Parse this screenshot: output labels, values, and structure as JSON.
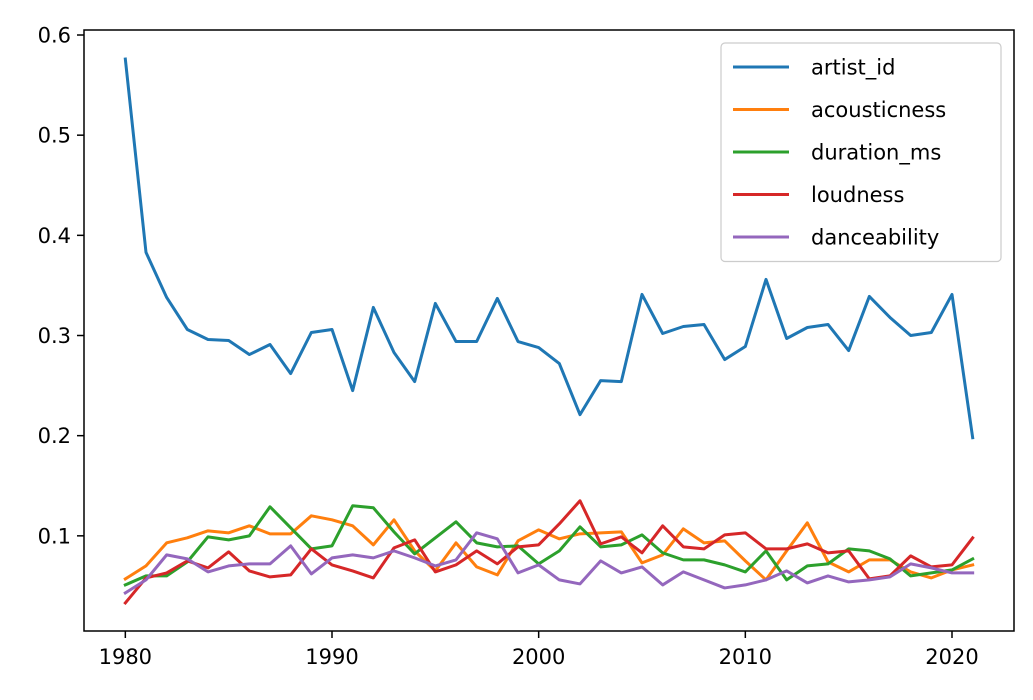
{
  "chart_data": {
    "type": "line",
    "title": "",
    "xlabel": "",
    "ylabel": "",
    "xlim": [
      1978,
      2023
    ],
    "ylim": [
      0.005,
      0.605
    ],
    "xticks": [
      1980,
      1990,
      2000,
      2010,
      2020
    ],
    "yticks": [
      0.1,
      0.2,
      0.3,
      0.4,
      0.5,
      0.6
    ],
    "xtick_labels": [
      "1980",
      "1990",
      "2000",
      "2010",
      "2020"
    ],
    "ytick_labels": [
      "0.1",
      "0.2",
      "0.3",
      "0.4",
      "0.5",
      "0.6"
    ],
    "grid": false,
    "legend_position": "top-right",
    "x": [
      1980,
      1981,
      1982,
      1983,
      1984,
      1985,
      1986,
      1987,
      1988,
      1989,
      1990,
      1991,
      1992,
      1993,
      1994,
      1995,
      1996,
      1997,
      1998,
      1999,
      2000,
      2001,
      2002,
      2003,
      2004,
      2005,
      2006,
      2007,
      2008,
      2009,
      2010,
      2011,
      2012,
      2013,
      2014,
      2015,
      2016,
      2017,
      2018,
      2019,
      2020,
      2021
    ],
    "series": [
      {
        "name": "artist_id",
        "color": "#1f77b4",
        "values": [
          0.576,
          0.383,
          0.338,
          0.306,
          0.296,
          0.295,
          0.281,
          0.291,
          0.262,
          0.303,
          0.306,
          0.245,
          0.328,
          0.283,
          0.254,
          0.332,
          0.294,
          0.294,
          0.337,
          0.294,
          0.288,
          0.272,
          0.221,
          0.255,
          0.254,
          0.341,
          0.302,
          0.309,
          0.311,
          0.276,
          0.289,
          0.356,
          0.297,
          0.308,
          0.311,
          0.285,
          0.339,
          0.318,
          0.3,
          0.303,
          0.341,
          0.198
        ]
      },
      {
        "name": "acousticness",
        "color": "#ff7f0e",
        "values": [
          0.057,
          0.07,
          0.093,
          0.098,
          0.105,
          0.103,
          0.11,
          0.102,
          0.102,
          0.12,
          0.116,
          0.11,
          0.091,
          0.116,
          0.085,
          0.065,
          0.093,
          0.069,
          0.061,
          0.095,
          0.106,
          0.097,
          0.102,
          0.103,
          0.104,
          0.073,
          0.081,
          0.107,
          0.093,
          0.095,
          0.075,
          0.056,
          0.085,
          0.113,
          0.074,
          0.064,
          0.076,
          0.076,
          0.064,
          0.058,
          0.066,
          0.071
        ]
      },
      {
        "name": "duration_ms",
        "color": "#2ca02c",
        "values": [
          0.051,
          0.06,
          0.06,
          0.074,
          0.099,
          0.096,
          0.1,
          0.129,
          0.108,
          0.087,
          0.09,
          0.13,
          0.128,
          0.104,
          0.082,
          0.098,
          0.114,
          0.093,
          0.089,
          0.09,
          0.072,
          0.085,
          0.109,
          0.089,
          0.091,
          0.101,
          0.083,
          0.076,
          0.076,
          0.071,
          0.064,
          0.085,
          0.056,
          0.07,
          0.072,
          0.087,
          0.085,
          0.077,
          0.06,
          0.063,
          0.066,
          0.077
        ]
      },
      {
        "name": "loudness",
        "color": "#d62728",
        "values": [
          0.033,
          0.058,
          0.063,
          0.075,
          0.068,
          0.084,
          0.065,
          0.059,
          0.061,
          0.087,
          0.071,
          0.065,
          0.058,
          0.088,
          0.096,
          0.064,
          0.071,
          0.085,
          0.072,
          0.089,
          0.091,
          0.112,
          0.135,
          0.092,
          0.099,
          0.083,
          0.11,
          0.089,
          0.087,
          0.101,
          0.103,
          0.087,
          0.087,
          0.092,
          0.083,
          0.085,
          0.057,
          0.06,
          0.08,
          0.069,
          0.071,
          0.098
        ]
      },
      {
        "name": "danceability",
        "color": "#9467bd",
        "values": [
          0.043,
          0.056,
          0.081,
          0.077,
          0.064,
          0.07,
          0.072,
          0.072,
          0.09,
          0.062,
          0.078,
          0.081,
          0.078,
          0.085,
          0.078,
          0.07,
          0.076,
          0.103,
          0.097,
          0.063,
          0.071,
          0.056,
          0.052,
          0.075,
          0.063,
          0.069,
          0.051,
          0.064,
          0.056,
          0.048,
          0.051,
          0.056,
          0.065,
          0.053,
          0.06,
          0.054,
          0.056,
          0.059,
          0.072,
          0.068,
          0.063,
          0.063
        ]
      }
    ]
  }
}
